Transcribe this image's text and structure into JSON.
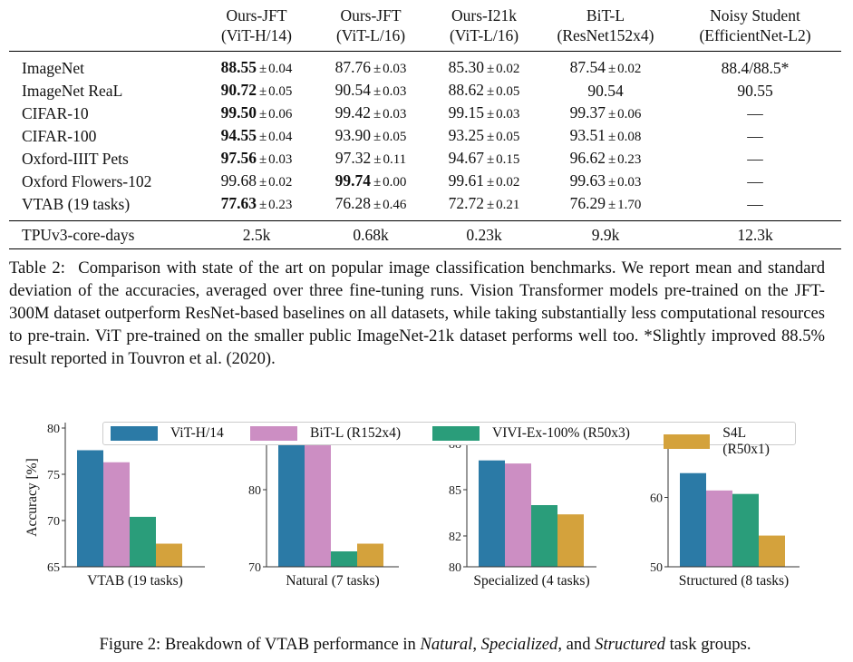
{
  "table": {
    "columns": [
      {
        "line1": "Ours-JFT",
        "line2": "(ViT-H/14)"
      },
      {
        "line1": "Ours-JFT",
        "line2": "(ViT-L/16)"
      },
      {
        "line1": "Ours-I21k",
        "line2": "(ViT-L/16)"
      },
      {
        "line1": "BiT-L",
        "line2": "(ResNet152x4)"
      },
      {
        "line1": "Noisy Student",
        "line2": "(EfficientNet-L2)"
      }
    ],
    "rows": [
      {
        "dataset": "ImageNet",
        "cells": [
          {
            "mean": "88.55",
            "pm": "±",
            "std": "0.04",
            "best": true
          },
          {
            "mean": "87.76",
            "pm": "±",
            "std": "0.03"
          },
          {
            "mean": "85.30",
            "pm": "±",
            "std": "0.02"
          },
          {
            "mean": "87.54",
            "pm": "±",
            "std": "0.02"
          },
          {
            "mean": "88.4/88.5*"
          }
        ]
      },
      {
        "dataset": "ImageNet ReaL",
        "cells": [
          {
            "mean": "90.72",
            "pm": "±",
            "std": "0.05",
            "best": true
          },
          {
            "mean": "90.54",
            "pm": "±",
            "std": "0.03"
          },
          {
            "mean": "88.62",
            "pm": "±",
            "std": "0.05"
          },
          {
            "mean": "90.54"
          },
          {
            "mean": "90.55"
          }
        ]
      },
      {
        "dataset": "CIFAR-10",
        "cells": [
          {
            "mean": "99.50",
            "pm": "±",
            "std": "0.06",
            "best": true
          },
          {
            "mean": "99.42",
            "pm": "±",
            "std": "0.03"
          },
          {
            "mean": "99.15",
            "pm": "±",
            "std": "0.03"
          },
          {
            "mean": "99.37",
            "pm": "±",
            "std": "0.06"
          },
          {
            "mean": "—"
          }
        ]
      },
      {
        "dataset": "CIFAR-100",
        "cells": [
          {
            "mean": "94.55",
            "pm": "±",
            "std": "0.04",
            "best": true
          },
          {
            "mean": "93.90",
            "pm": "±",
            "std": "0.05"
          },
          {
            "mean": "93.25",
            "pm": "±",
            "std": "0.05"
          },
          {
            "mean": "93.51",
            "pm": "±",
            "std": "0.08"
          },
          {
            "mean": "—"
          }
        ]
      },
      {
        "dataset": "Oxford-IIIT Pets",
        "cells": [
          {
            "mean": "97.56",
            "pm": "±",
            "std": "0.03",
            "best": true
          },
          {
            "mean": "97.32",
            "pm": "±",
            "std": "0.11"
          },
          {
            "mean": "94.67",
            "pm": "±",
            "std": "0.15"
          },
          {
            "mean": "96.62",
            "pm": "±",
            "std": "0.23"
          },
          {
            "mean": "—"
          }
        ]
      },
      {
        "dataset": "Oxford Flowers-102",
        "cells": [
          {
            "mean": "99.68",
            "pm": "±",
            "std": "0.02"
          },
          {
            "mean": "99.74",
            "pm": "±",
            "std": "0.00",
            "best": true
          },
          {
            "mean": "99.61",
            "pm": "±",
            "std": "0.02"
          },
          {
            "mean": "99.63",
            "pm": "±",
            "std": "0.03"
          },
          {
            "mean": "—"
          }
        ]
      },
      {
        "dataset": "VTAB (19 tasks)",
        "cells": [
          {
            "mean": "77.63",
            "pm": "±",
            "std": "0.23",
            "best": true
          },
          {
            "mean": "76.28",
            "pm": "±",
            "std": "0.46"
          },
          {
            "mean": "72.72",
            "pm": "±",
            "std": "0.21"
          },
          {
            "mean": "76.29",
            "pm": "±",
            "std": "1.70"
          },
          {
            "mean": "—"
          }
        ]
      }
    ],
    "footer": {
      "label": "TPUv3-core-days",
      "values": [
        "2.5k",
        "0.68k",
        "0.23k",
        "9.9k",
        "12.3k"
      ]
    }
  },
  "table_caption": {
    "label": "Table 2:",
    "text": "Comparison with state of the art on popular image classification benchmarks. We report mean and standard deviation of the accuracies, averaged over three fine-tuning runs. Vision Transformer models pre-trained on the JFT-300M dataset outperform ResNet-based baselines on all datasets, while taking substantially less computational resources to pre-train. ViT pre-trained on the smaller public ImageNet-21k dataset performs well too. *Slightly improved 88.5% result reported in Touvron et al. (2020)."
  },
  "figure_caption": {
    "prefix": "Figure 2: Breakdown of VTAB performance in ",
    "natural": "Natural",
    "sep1": ", ",
    "specialized": "Specialized",
    "sep2": ", and ",
    "structured": "Structured",
    "suffix": " task groups."
  },
  "chart_data": [
    {
      "type": "bar",
      "ylabel": "Accuracy [%]",
      "xlabel": "VTAB (19 tasks)",
      "ylim": [
        65,
        80
      ],
      "yticks": [
        65,
        70,
        75,
        80
      ],
      "series": [
        {
          "name": "ViT-H/14",
          "values": [
            77.6
          ]
        },
        {
          "name": "BiT-L (R152x4)",
          "values": [
            76.3
          ]
        },
        {
          "name": "VIVI-Ex-100% (R50x3)",
          "values": [
            70.4
          ]
        },
        {
          "name": "S4L (R50x1)",
          "values": [
            67.5
          ]
        }
      ]
    },
    {
      "type": "bar",
      "xlabel": "Natural (7 tasks)",
      "ylim": [
        70,
        88
      ],
      "yticks": [
        70,
        80
      ],
      "series": [
        {
          "name": "ViT-H/14",
          "values": [
            87.0
          ]
        },
        {
          "name": "BiT-L (R152x4)",
          "values": [
            86.0
          ]
        },
        {
          "name": "VIVI-Ex-100% (R50x3)",
          "values": [
            72.0
          ]
        },
        {
          "name": "S4L (R50x1)",
          "values": [
            73.0
          ]
        }
      ]
    },
    {
      "type": "bar",
      "xlabel": "Specialized (4 tasks)",
      "ylim": [
        80,
        89
      ],
      "yticks": [
        80,
        82,
        85,
        88
      ],
      "series": [
        {
          "name": "ViT-H/14",
          "values": [
            86.9
          ]
        },
        {
          "name": "BiT-L (R152x4)",
          "values": [
            86.7
          ]
        },
        {
          "name": "VIVI-Ex-100% (R50x3)",
          "values": [
            84.0
          ]
        },
        {
          "name": "S4L (R50x1)",
          "values": [
            83.4
          ]
        }
      ]
    },
    {
      "type": "bar",
      "xlabel": "Structured (8 tasks)",
      "ylim": [
        50,
        70
      ],
      "yticks": [
        50,
        60
      ],
      "series": [
        {
          "name": "ViT-H/14",
          "values": [
            63.5
          ]
        },
        {
          "name": "BiT-L (R152x4)",
          "values": [
            61.0
          ]
        },
        {
          "name": "VIVI-Ex-100% (R50x3)",
          "values": [
            60.5
          ]
        },
        {
          "name": "S4L (R50x1)",
          "values": [
            54.5
          ]
        }
      ]
    }
  ],
  "legend": [
    {
      "label": "ViT-H/14",
      "color": "#2b7aa6"
    },
    {
      "label": "BiT-L (R152x4)",
      "color": "#cc8ec3"
    },
    {
      "label": "VIVI-Ex-100% (R50x3)",
      "color": "#2a9d7a"
    },
    {
      "label": "S4L (R50x1)",
      "color": "#d4a23c"
    }
  ]
}
